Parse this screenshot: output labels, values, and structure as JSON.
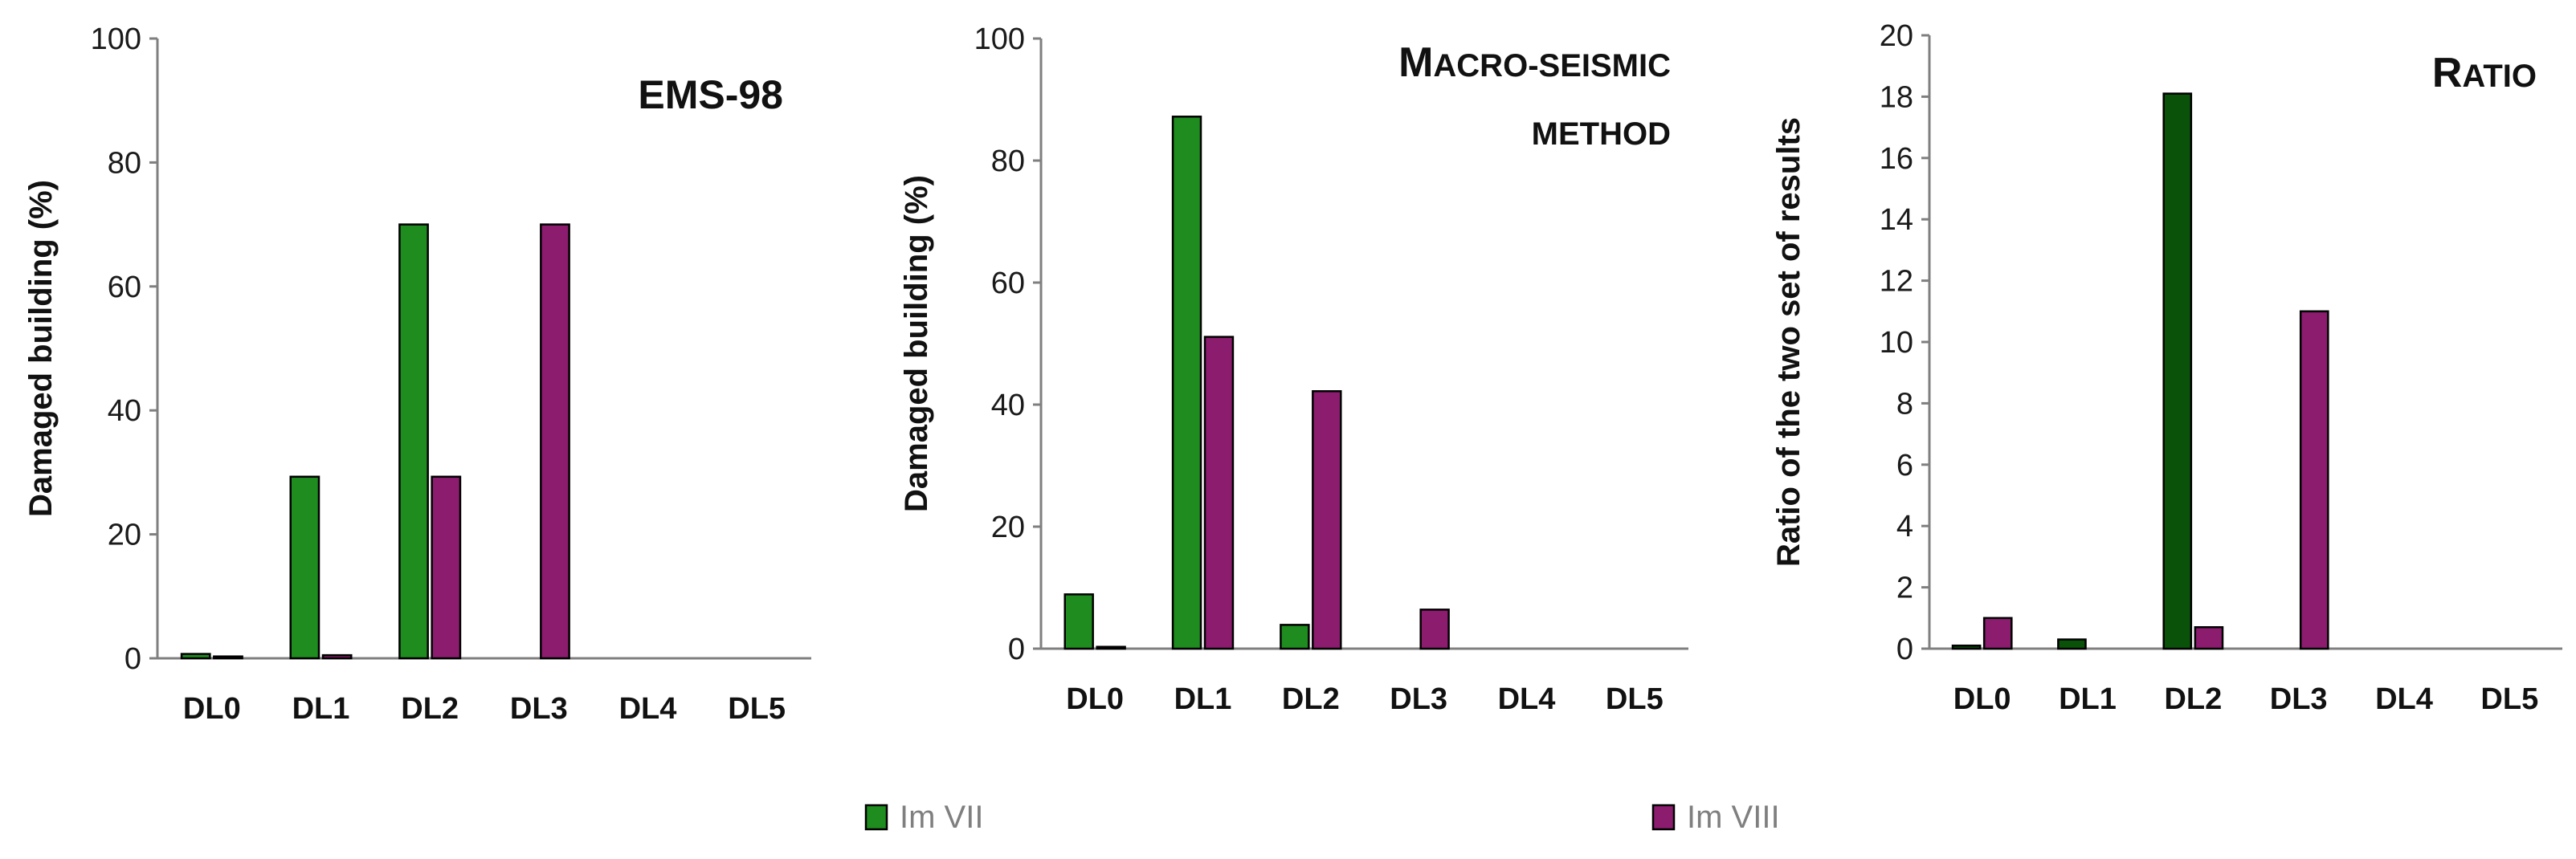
{
  "colors": {
    "im_vii": "#1e8c1e",
    "im_viii": "#8b1c6e",
    "ratio_vii": "#0a520a",
    "ratio_viii": "#8b1c6e"
  },
  "legend": [
    {
      "label": "Im VII",
      "color": "#1e8c1e"
    },
    {
      "label": "Im VIII",
      "color": "#8b1c6e"
    }
  ],
  "chart_data": [
    {
      "type": "bar",
      "title": "EMS-98",
      "title_lines": [
        "EMS-98"
      ],
      "ylabel": "Damaged building (%)",
      "categories": [
        "DL0",
        "DL1",
        "DL2",
        "DL3",
        "DL4",
        "DL5"
      ],
      "ylim": [
        0,
        100
      ],
      "yticks": [
        0,
        20,
        40,
        60,
        80,
        100
      ],
      "series": [
        {
          "name": "Im VII",
          "values": [
            0.7,
            29.3,
            70,
            0,
            0,
            0
          ]
        },
        {
          "name": "Im VIII",
          "values": [
            0.3,
            0.5,
            29.3,
            70,
            0,
            0
          ]
        }
      ],
      "legend": "bottom"
    },
    {
      "type": "bar",
      "title": "Macro-seismic method",
      "title_lines": [
        "Macro-seismic",
        "method"
      ],
      "ylabel": "Damaged building (%)",
      "categories": [
        "DL0",
        "DL1",
        "DL2",
        "DL3",
        "DL4",
        "DL5"
      ],
      "ylim": [
        0,
        100
      ],
      "yticks": [
        0,
        20,
        40,
        60,
        80,
        100
      ],
      "series": [
        {
          "name": "Im VII",
          "values": [
            8.9,
            87.2,
            3.9,
            0,
            0,
            0
          ]
        },
        {
          "name": "Im VIII",
          "values": [
            0.3,
            51.1,
            42.2,
            6.4,
            0,
            0
          ]
        }
      ],
      "legend": "bottom"
    },
    {
      "type": "bar",
      "title": "Ratio",
      "title_lines": [
        "Ratio"
      ],
      "ylabel": "Ratio of the two set of results",
      "categories": [
        "DL0",
        "DL1",
        "DL2",
        "DL3",
        "DL4",
        "DL5"
      ],
      "ylim": [
        0,
        20
      ],
      "yticks": [
        0,
        2,
        4,
        6,
        8,
        10,
        12,
        14,
        16,
        18,
        20
      ],
      "series": [
        {
          "name": "Im VII",
          "values": [
            0.1,
            0.3,
            18.1,
            0,
            0,
            0
          ]
        },
        {
          "name": "Im VIII",
          "values": [
            1.0,
            0,
            0.7,
            11.0,
            0,
            0
          ]
        }
      ],
      "legend": "bottom"
    }
  ]
}
